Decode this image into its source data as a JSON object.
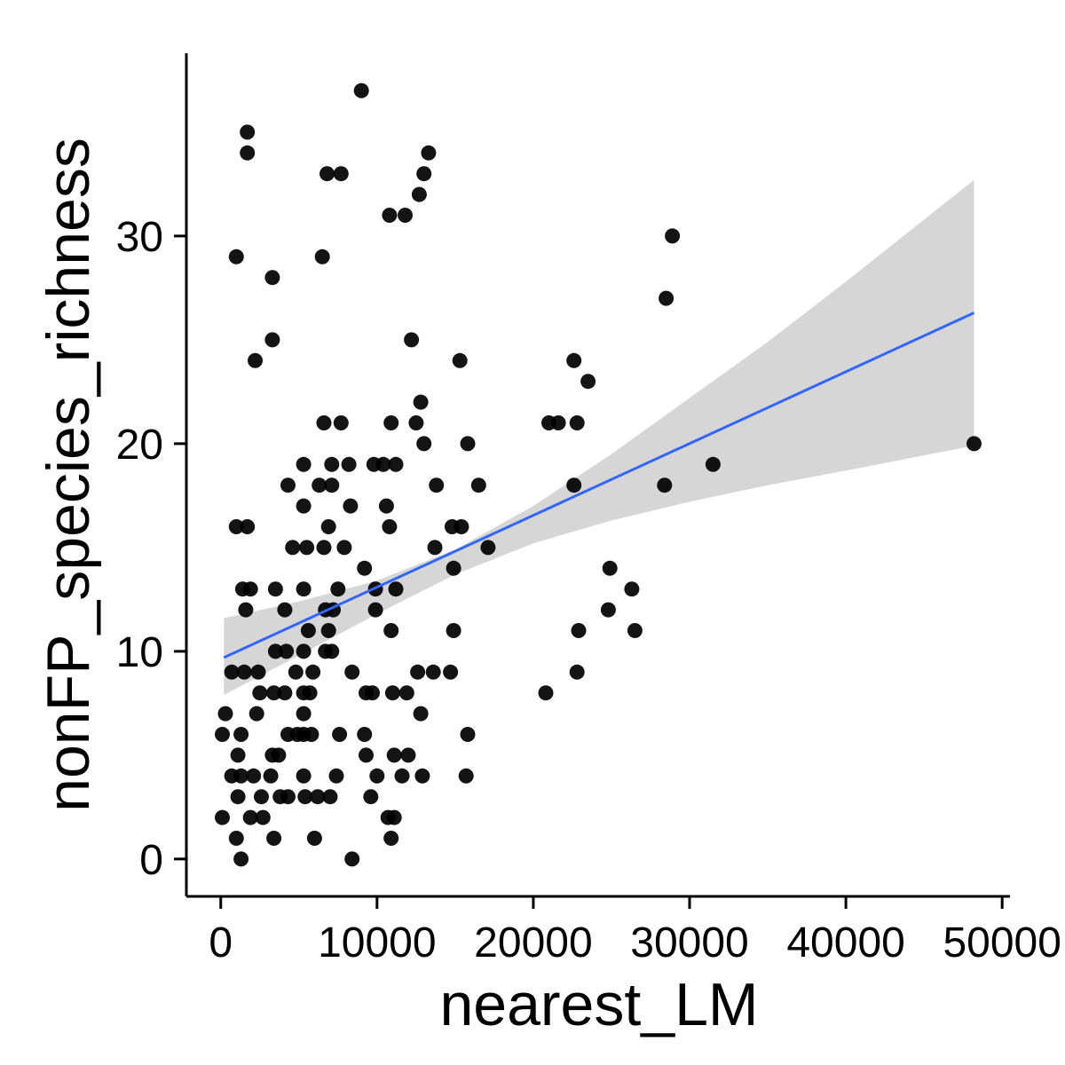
{
  "chart_data": {
    "type": "scatter",
    "title": "",
    "xlabel": "nearest_LM",
    "ylabel": "nonFP_species_richness",
    "xlim": [
      -2200,
      50500
    ],
    "ylim": [
      -1.8,
      38.8
    ],
    "x_ticks": [
      0,
      10000,
      20000,
      30000,
      40000,
      50000
    ],
    "x_tick_labels": [
      "0",
      "10000",
      "20000",
      "30000",
      "40000",
      "50000"
    ],
    "y_ticks": [
      0,
      10,
      20,
      30
    ],
    "y_tick_labels": [
      "0",
      "10",
      "20",
      "30"
    ],
    "grid": false,
    "legend": "none",
    "points": [
      {
        "x": 9000,
        "y": 37
      },
      {
        "x": 1700,
        "y": 35
      },
      {
        "x": 1700,
        "y": 34
      },
      {
        "x": 13300,
        "y": 34
      },
      {
        "x": 6800,
        "y": 33
      },
      {
        "x": 7700,
        "y": 33
      },
      {
        "x": 13000,
        "y": 33
      },
      {
        "x": 12700,
        "y": 32
      },
      {
        "x": 10800,
        "y": 31
      },
      {
        "x": 11800,
        "y": 31
      },
      {
        "x": 28900,
        "y": 30
      },
      {
        "x": 1000,
        "y": 29
      },
      {
        "x": 6500,
        "y": 29
      },
      {
        "x": 3300,
        "y": 28
      },
      {
        "x": 28500,
        "y": 27
      },
      {
        "x": 3300,
        "y": 25
      },
      {
        "x": 12200,
        "y": 25
      },
      {
        "x": 2200,
        "y": 24
      },
      {
        "x": 15300,
        "y": 24
      },
      {
        "x": 22600,
        "y": 24
      },
      {
        "x": 23500,
        "y": 23
      },
      {
        "x": 12800,
        "y": 22
      },
      {
        "x": 6600,
        "y": 21
      },
      {
        "x": 7700,
        "y": 21
      },
      {
        "x": 10900,
        "y": 21
      },
      {
        "x": 12500,
        "y": 21
      },
      {
        "x": 21000,
        "y": 21
      },
      {
        "x": 21600,
        "y": 21
      },
      {
        "x": 22800,
        "y": 21
      },
      {
        "x": 13000,
        "y": 20
      },
      {
        "x": 15800,
        "y": 20
      },
      {
        "x": 48200,
        "y": 20
      },
      {
        "x": 5300,
        "y": 19
      },
      {
        "x": 7100,
        "y": 19
      },
      {
        "x": 8200,
        "y": 19
      },
      {
        "x": 9800,
        "y": 19
      },
      {
        "x": 10400,
        "y": 19
      },
      {
        "x": 11200,
        "y": 19
      },
      {
        "x": 31500,
        "y": 19
      },
      {
        "x": 4300,
        "y": 18
      },
      {
        "x": 6300,
        "y": 18
      },
      {
        "x": 7100,
        "y": 18
      },
      {
        "x": 13800,
        "y": 18
      },
      {
        "x": 16500,
        "y": 18
      },
      {
        "x": 22600,
        "y": 18
      },
      {
        "x": 28400,
        "y": 18
      },
      {
        "x": 5300,
        "y": 17
      },
      {
        "x": 8300,
        "y": 17
      },
      {
        "x": 10600,
        "y": 17
      },
      {
        "x": 1000,
        "y": 16
      },
      {
        "x": 1700,
        "y": 16
      },
      {
        "x": 6900,
        "y": 16
      },
      {
        "x": 10800,
        "y": 16
      },
      {
        "x": 14800,
        "y": 16
      },
      {
        "x": 15400,
        "y": 16
      },
      {
        "x": 4600,
        "y": 15
      },
      {
        "x": 5500,
        "y": 15
      },
      {
        "x": 6600,
        "y": 15
      },
      {
        "x": 7900,
        "y": 15
      },
      {
        "x": 13700,
        "y": 15
      },
      {
        "x": 17100,
        "y": 15
      },
      {
        "x": 9200,
        "y": 14
      },
      {
        "x": 14900,
        "y": 14
      },
      {
        "x": 24900,
        "y": 14
      },
      {
        "x": 1400,
        "y": 13
      },
      {
        "x": 1900,
        "y": 13
      },
      {
        "x": 3500,
        "y": 13
      },
      {
        "x": 5300,
        "y": 13
      },
      {
        "x": 7500,
        "y": 13
      },
      {
        "x": 9900,
        "y": 13
      },
      {
        "x": 11200,
        "y": 13
      },
      {
        "x": 26300,
        "y": 13
      },
      {
        "x": 1600,
        "y": 12
      },
      {
        "x": 4100,
        "y": 12
      },
      {
        "x": 6700,
        "y": 12
      },
      {
        "x": 7200,
        "y": 12
      },
      {
        "x": 9900,
        "y": 12
      },
      {
        "x": 24800,
        "y": 12
      },
      {
        "x": 5600,
        "y": 11
      },
      {
        "x": 6900,
        "y": 11
      },
      {
        "x": 10900,
        "y": 11
      },
      {
        "x": 14900,
        "y": 11
      },
      {
        "x": 22900,
        "y": 11
      },
      {
        "x": 26500,
        "y": 11
      },
      {
        "x": 3500,
        "y": 10
      },
      {
        "x": 4200,
        "y": 10
      },
      {
        "x": 5300,
        "y": 10
      },
      {
        "x": 6700,
        "y": 10
      },
      {
        "x": 7100,
        "y": 10
      },
      {
        "x": 700,
        "y": 9
      },
      {
        "x": 1500,
        "y": 9
      },
      {
        "x": 2400,
        "y": 9
      },
      {
        "x": 4800,
        "y": 9
      },
      {
        "x": 5900,
        "y": 9
      },
      {
        "x": 8400,
        "y": 9
      },
      {
        "x": 12600,
        "y": 9
      },
      {
        "x": 13600,
        "y": 9
      },
      {
        "x": 14700,
        "y": 9
      },
      {
        "x": 22800,
        "y": 9
      },
      {
        "x": 2500,
        "y": 8
      },
      {
        "x": 3400,
        "y": 8
      },
      {
        "x": 4100,
        "y": 8
      },
      {
        "x": 5300,
        "y": 8
      },
      {
        "x": 5700,
        "y": 8
      },
      {
        "x": 9300,
        "y": 8
      },
      {
        "x": 9700,
        "y": 8
      },
      {
        "x": 11000,
        "y": 8
      },
      {
        "x": 11900,
        "y": 8
      },
      {
        "x": 20800,
        "y": 8
      },
      {
        "x": 300,
        "y": 7
      },
      {
        "x": 2300,
        "y": 7
      },
      {
        "x": 5300,
        "y": 7
      },
      {
        "x": 12800,
        "y": 7
      },
      {
        "x": 100,
        "y": 6
      },
      {
        "x": 1300,
        "y": 6
      },
      {
        "x": 4300,
        "y": 6
      },
      {
        "x": 4900,
        "y": 6
      },
      {
        "x": 5300,
        "y": 6
      },
      {
        "x": 5800,
        "y": 6
      },
      {
        "x": 7600,
        "y": 6
      },
      {
        "x": 9200,
        "y": 6
      },
      {
        "x": 15800,
        "y": 6
      },
      {
        "x": 1100,
        "y": 5
      },
      {
        "x": 3300,
        "y": 5
      },
      {
        "x": 3700,
        "y": 5
      },
      {
        "x": 9300,
        "y": 5
      },
      {
        "x": 11100,
        "y": 5
      },
      {
        "x": 12000,
        "y": 5
      },
      {
        "x": 700,
        "y": 4
      },
      {
        "x": 1300,
        "y": 4
      },
      {
        "x": 2100,
        "y": 4
      },
      {
        "x": 3200,
        "y": 4
      },
      {
        "x": 5300,
        "y": 4
      },
      {
        "x": 7400,
        "y": 4
      },
      {
        "x": 10000,
        "y": 4
      },
      {
        "x": 11600,
        "y": 4
      },
      {
        "x": 12900,
        "y": 4
      },
      {
        "x": 15700,
        "y": 4
      },
      {
        "x": 1100,
        "y": 3
      },
      {
        "x": 2600,
        "y": 3
      },
      {
        "x": 3800,
        "y": 3
      },
      {
        "x": 4300,
        "y": 3
      },
      {
        "x": 5400,
        "y": 3
      },
      {
        "x": 6200,
        "y": 3
      },
      {
        "x": 7000,
        "y": 3
      },
      {
        "x": 9600,
        "y": 3
      },
      {
        "x": 100,
        "y": 2
      },
      {
        "x": 1900,
        "y": 2
      },
      {
        "x": 2700,
        "y": 2
      },
      {
        "x": 10700,
        "y": 2
      },
      {
        "x": 11100,
        "y": 2
      },
      {
        "x": 1000,
        "y": 1
      },
      {
        "x": 3400,
        "y": 1
      },
      {
        "x": 6000,
        "y": 1
      },
      {
        "x": 10900,
        "y": 1
      },
      {
        "x": 1300,
        "y": 0
      },
      {
        "x": 8400,
        "y": 0
      }
    ],
    "trend_line": {
      "color": "#3366ff",
      "x": [
        200,
        48200
      ],
      "y": [
        9.7,
        26.3
      ]
    },
    "confidence_band": {
      "color": "#cccccc",
      "x": [
        200,
        5000,
        10000,
        15000,
        20000,
        25000,
        30000,
        35000,
        40000,
        48200
      ],
      "lower": [
        7.9,
        9.8,
        11.8,
        13.7,
        15.2,
        16.3,
        17.2,
        18.0,
        18.7,
        19.9
      ],
      "upper": [
        11.6,
        12.4,
        13.4,
        14.9,
        17.0,
        19.5,
        22.2,
        24.9,
        27.8,
        32.7
      ]
    },
    "colors": {
      "points": "#000000",
      "axis": "#000000"
    }
  }
}
